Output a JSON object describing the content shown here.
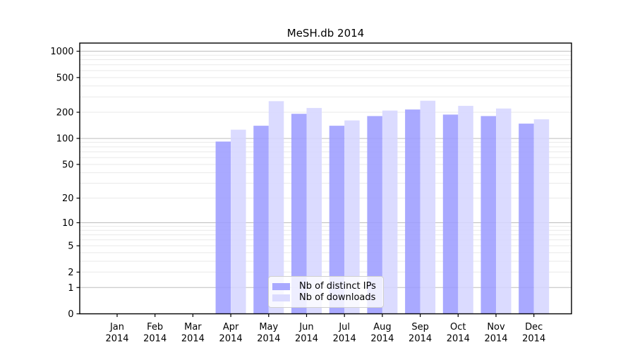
{
  "chart_data": {
    "type": "bar",
    "title": "MeSH.db 2014",
    "categories": [
      "Jan",
      "Feb",
      "Mar",
      "Apr",
      "May",
      "Jun",
      "Jul",
      "Aug",
      "Sep",
      "Oct",
      "Nov",
      "Dec"
    ],
    "category_year": "2014",
    "series": [
      {
        "name": "Nb of distinct IPs",
        "color": "#9d9dff",
        "values": [
          null,
          null,
          null,
          92,
          140,
          192,
          140,
          181,
          215,
          188,
          181,
          148
        ]
      },
      {
        "name": "Nb of downloads",
        "color": "#d6d6ff",
        "values": [
          null,
          null,
          null,
          126,
          268,
          224,
          161,
          209,
          271,
          237,
          221,
          166
        ]
      }
    ],
    "y_scale": "log1p",
    "y_ticks": [
      0,
      1,
      2,
      5,
      10,
      20,
      50,
      100,
      200,
      500,
      1000
    ],
    "ylim": [
      0,
      1240
    ],
    "grid": true,
    "legend_position": "lower-center"
  },
  "colors": {
    "axis": "#000000",
    "grid_major": "#bdbdbd",
    "grid_minor": "#e9e9e9",
    "background": "#ffffff"
  }
}
